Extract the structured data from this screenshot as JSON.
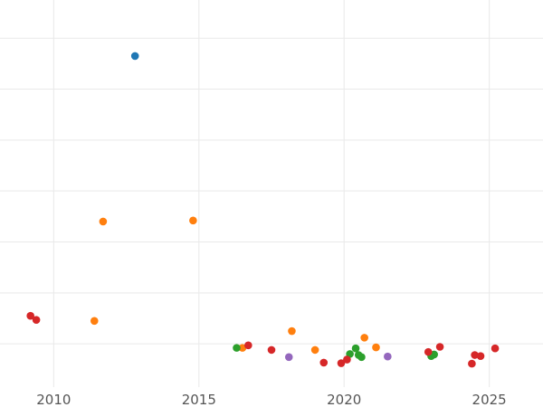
{
  "chart_data": {
    "type": "scatter",
    "title": "",
    "xlabel": "",
    "ylabel": "",
    "xlim": [
      2008.15,
      2026.85
    ],
    "x_ticks": [
      2010,
      2015,
      2020,
      2025
    ],
    "x_tick_labels": [
      "2010",
      "2015",
      "2020",
      "2025"
    ],
    "ylim": [
      -0.35,
      7.25
    ],
    "y_gridlines": [
      0.5,
      1.5,
      2.5,
      3.5,
      4.5,
      5.5,
      6.5,
      7.5
    ],
    "grid": true,
    "legend": "none",
    "series": [
      {
        "color": "#1f77b4",
        "points": [
          [
            2012.8,
            6.15
          ]
        ]
      },
      {
        "color": "#ff7f0e",
        "points": [
          [
            2011.7,
            2.9
          ],
          [
            2014.8,
            2.92
          ],
          [
            2011.4,
            0.95
          ],
          [
            2016.5,
            0.42
          ],
          [
            2018.2,
            0.75
          ],
          [
            2019.0,
            0.38
          ],
          [
            2020.7,
            0.62
          ],
          [
            2021.1,
            0.43
          ]
        ]
      },
      {
        "color": "#2ca02c",
        "points": [
          [
            2016.3,
            0.42
          ],
          [
            2020.2,
            0.3
          ],
          [
            2020.4,
            0.41
          ],
          [
            2020.5,
            0.28
          ],
          [
            2020.6,
            0.24
          ],
          [
            2023.0,
            0.26
          ],
          [
            2023.1,
            0.29
          ]
        ]
      },
      {
        "color": "#d62728",
        "points": [
          [
            2009.2,
            1.05
          ],
          [
            2009.4,
            0.97
          ],
          [
            2016.7,
            0.47
          ],
          [
            2017.5,
            0.38
          ],
          [
            2019.3,
            0.13
          ],
          [
            2019.9,
            0.12
          ],
          [
            2020.1,
            0.19
          ],
          [
            2022.9,
            0.34
          ],
          [
            2023.3,
            0.44
          ],
          [
            2024.4,
            0.11
          ],
          [
            2024.5,
            0.28
          ],
          [
            2024.7,
            0.26
          ],
          [
            2025.2,
            0.41
          ]
        ]
      },
      {
        "color": "#9467bd",
        "points": [
          [
            2018.1,
            0.24
          ],
          [
            2021.5,
            0.25
          ]
        ]
      }
    ]
  }
}
